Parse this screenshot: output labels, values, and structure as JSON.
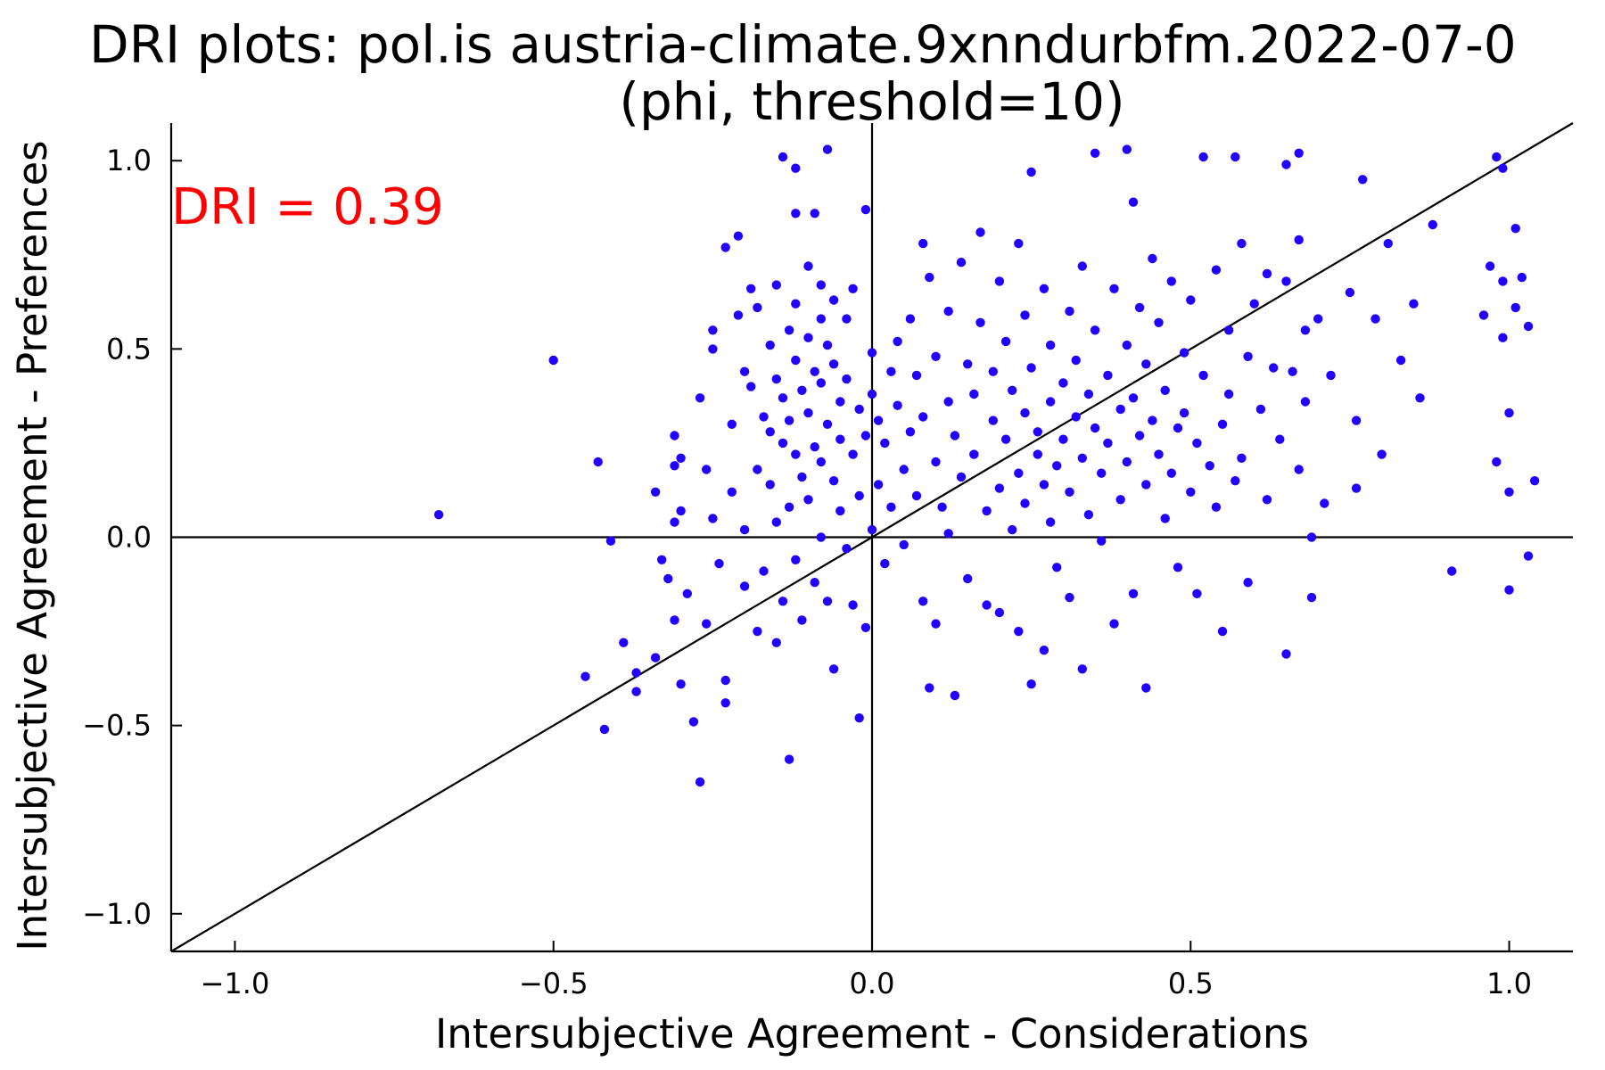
{
  "chart_data": {
    "type": "scatter",
    "title": "DRI plots: pol.is austria-climate.9xnndurbfm.2022-07-0",
    "subtitle": "(phi, threshold=10)",
    "xlabel": "Intersubjective Agreement - Considerations",
    "ylabel": "Intersubjective Agreement - Preferences",
    "xlim": [
      -1.1,
      1.1
    ],
    "ylim": [
      -1.1,
      1.1
    ],
    "xticks": [
      -1.0,
      -0.5,
      0.0,
      0.5,
      1.0
    ],
    "xtick_labels": [
      "−1.0",
      "−0.5",
      "0.0",
      "0.5",
      "1.0"
    ],
    "yticks": [
      1.0,
      0.5,
      0.0,
      -0.5,
      -1.0
    ],
    "ytick_labels": [
      "1.0",
      "0.5",
      "0.0",
      "−0.5",
      "−1.0"
    ],
    "grid": false,
    "annotation": {
      "text": "DRI = 0.39",
      "color": "#ff0000"
    },
    "reference_lines": [
      "y = x",
      "x = 0",
      "y = 0"
    ],
    "point_color": "#2200ff",
    "points": [
      [
        -0.68,
        0.06
      ],
      [
        -0.5,
        0.47
      ],
      [
        -0.43,
        0.2
      ],
      [
        -0.41,
        -0.01
      ],
      [
        -0.39,
        -0.28
      ],
      [
        -0.42,
        -0.51
      ],
      [
        -0.45,
        -0.37
      ],
      [
        -0.37,
        -0.41
      ],
      [
        -0.37,
        -0.36
      ],
      [
        -0.34,
        -0.32
      ],
      [
        -0.34,
        0.12
      ],
      [
        -0.33,
        -0.06
      ],
      [
        -0.32,
        -0.11
      ],
      [
        -0.31,
        -0.22
      ],
      [
        -0.31,
        0.04
      ],
      [
        -0.31,
        0.19
      ],
      [
        -0.31,
        0.27
      ],
      [
        -0.3,
        0.21
      ],
      [
        -0.3,
        -0.39
      ],
      [
        -0.3,
        0.07
      ],
      [
        -0.29,
        -0.15
      ],
      [
        -0.28,
        -0.49
      ],
      [
        -0.27,
        -0.65
      ],
      [
        -0.27,
        0.37
      ],
      [
        -0.26,
        0.18
      ],
      [
        -0.26,
        -0.23
      ],
      [
        -0.25,
        0.5
      ],
      [
        -0.25,
        0.55
      ],
      [
        -0.25,
        0.05
      ],
      [
        -0.24,
        -0.07
      ],
      [
        -0.23,
        -0.38
      ],
      [
        -0.23,
        -0.44
      ],
      [
        -0.23,
        0.77
      ],
      [
        -0.22,
        0.3
      ],
      [
        -0.22,
        0.12
      ],
      [
        -0.21,
        0.59
      ],
      [
        -0.21,
        0.8
      ],
      [
        -0.2,
        0.44
      ],
      [
        -0.2,
        -0.13
      ],
      [
        -0.2,
        0.02
      ],
      [
        -0.19,
        0.4
      ],
      [
        -0.19,
        0.66
      ],
      [
        -0.18,
        0.61
      ],
      [
        -0.18,
        0.18
      ],
      [
        -0.18,
        -0.25
      ],
      [
        -0.17,
        0.32
      ],
      [
        -0.17,
        -0.09
      ],
      [
        -0.16,
        0.51
      ],
      [
        -0.16,
        0.28
      ],
      [
        -0.16,
        0.14
      ],
      [
        -0.15,
        0.67
      ],
      [
        -0.15,
        0.42
      ],
      [
        -0.15,
        0.04
      ],
      [
        -0.15,
        -0.28
      ],
      [
        -0.14,
        0.37
      ],
      [
        -0.14,
        0.25
      ],
      [
        -0.14,
        -0.17
      ],
      [
        -0.14,
        1.01
      ],
      [
        -0.13,
        0.55
      ],
      [
        -0.13,
        0.31
      ],
      [
        -0.13,
        0.08
      ],
      [
        -0.13,
        -0.59
      ],
      [
        -0.12,
        0.86
      ],
      [
        -0.12,
        0.62
      ],
      [
        -0.12,
        0.47
      ],
      [
        -0.12,
        0.22
      ],
      [
        -0.12,
        -0.06
      ],
      [
        -0.12,
        0.98
      ],
      [
        -0.11,
        0.39
      ],
      [
        -0.11,
        0.16
      ],
      [
        -0.11,
        -0.22
      ],
      [
        -0.1,
        0.72
      ],
      [
        -0.1,
        0.53
      ],
      [
        -0.1,
        0.33
      ],
      [
        -0.1,
        0.1
      ],
      [
        -0.09,
        0.86
      ],
      [
        -0.09,
        0.44
      ],
      [
        -0.09,
        0.24
      ],
      [
        -0.09,
        -0.12
      ],
      [
        -0.08,
        0.67
      ],
      [
        -0.08,
        0.58
      ],
      [
        -0.08,
        0.41
      ],
      [
        -0.08,
        0.2
      ],
      [
        -0.08,
        0.0
      ],
      [
        -0.07,
        0.51
      ],
      [
        -0.07,
        0.3
      ],
      [
        -0.07,
        -0.17
      ],
      [
        -0.07,
        1.03
      ],
      [
        -0.06,
        0.63
      ],
      [
        -0.06,
        0.46
      ],
      [
        -0.06,
        0.15
      ],
      [
        -0.06,
        -0.35
      ],
      [
        -0.05,
        0.36
      ],
      [
        -0.05,
        0.26
      ],
      [
        -0.05,
        0.07
      ],
      [
        -0.04,
        0.58
      ],
      [
        -0.04,
        0.42
      ],
      [
        -0.04,
        -0.03
      ],
      [
        -0.03,
        0.66
      ],
      [
        -0.03,
        0.22
      ],
      [
        -0.03,
        -0.18
      ],
      [
        -0.02,
        0.34
      ],
      [
        -0.02,
        0.11
      ],
      [
        -0.02,
        -0.48
      ],
      [
        -0.01,
        0.87
      ],
      [
        -0.01,
        0.27
      ],
      [
        -0.01,
        -0.24
      ],
      [
        0.0,
        0.49
      ],
      [
        0.0,
        0.38
      ],
      [
        0.0,
        0.02
      ],
      [
        0.01,
        0.14
      ],
      [
        0.01,
        0.31
      ],
      [
        0.02,
        -0.07
      ],
      [
        0.02,
        0.25
      ],
      [
        0.03,
        0.44
      ],
      [
        0.03,
        0.08
      ],
      [
        0.04,
        0.52
      ],
      [
        0.04,
        0.35
      ],
      [
        0.05,
        0.18
      ],
      [
        0.05,
        -0.02
      ],
      [
        0.06,
        0.58
      ],
      [
        0.06,
        0.28
      ],
      [
        0.07,
        0.43
      ],
      [
        0.07,
        0.11
      ],
      [
        0.08,
        0.78
      ],
      [
        0.08,
        -0.17
      ],
      [
        0.08,
        0.32
      ],
      [
        0.09,
        -0.4
      ],
      [
        0.09,
        0.69
      ],
      [
        0.1,
        0.2
      ],
      [
        0.1,
        0.48
      ],
      [
        0.1,
        -0.23
      ],
      [
        0.11,
        0.08
      ],
      [
        0.12,
        0.36
      ],
      [
        0.12,
        0.6
      ],
      [
        0.12,
        0.01
      ],
      [
        0.13,
        -0.42
      ],
      [
        0.13,
        0.27
      ],
      [
        0.14,
        0.16
      ],
      [
        0.14,
        0.73
      ],
      [
        0.15,
        0.46
      ],
      [
        0.15,
        -0.11
      ],
      [
        0.16,
        0.22
      ],
      [
        0.16,
        0.38
      ],
      [
        0.17,
        0.57
      ],
      [
        0.17,
        0.81
      ],
      [
        0.18,
        0.07
      ],
      [
        0.18,
        -0.18
      ],
      [
        0.19,
        0.31
      ],
      [
        0.19,
        0.44
      ],
      [
        0.2,
        0.13
      ],
      [
        0.2,
        0.68
      ],
      [
        0.2,
        -0.2
      ],
      [
        0.21,
        0.26
      ],
      [
        0.21,
        0.52
      ],
      [
        0.22,
        0.39
      ],
      [
        0.22,
        0.02
      ],
      [
        0.23,
        0.17
      ],
      [
        0.23,
        0.78
      ],
      [
        0.23,
        -0.25
      ],
      [
        0.24,
        0.33
      ],
      [
        0.24,
        0.59
      ],
      [
        0.24,
        0.09
      ],
      [
        0.25,
        0.97
      ],
      [
        0.25,
        0.45
      ],
      [
        0.25,
        -0.39
      ],
      [
        0.26,
        0.22
      ],
      [
        0.26,
        0.28
      ],
      [
        0.27,
        0.14
      ],
      [
        0.27,
        0.66
      ],
      [
        0.27,
        -0.3
      ],
      [
        0.28,
        0.36
      ],
      [
        0.28,
        0.04
      ],
      [
        0.28,
        0.51
      ],
      [
        0.29,
        0.19
      ],
      [
        0.29,
        -0.08
      ],
      [
        0.3,
        0.41
      ],
      [
        0.3,
        0.26
      ],
      [
        0.31,
        0.6
      ],
      [
        0.31,
        0.12
      ],
      [
        0.31,
        -0.16
      ],
      [
        0.32,
        0.32
      ],
      [
        0.32,
        0.47
      ],
      [
        0.33,
        0.21
      ],
      [
        0.33,
        0.72
      ],
      [
        0.33,
        -0.35
      ],
      [
        0.34,
        0.38
      ],
      [
        0.34,
        0.06
      ],
      [
        0.35,
        1.02
      ],
      [
        0.35,
        0.29
      ],
      [
        0.35,
        0.55
      ],
      [
        0.36,
        0.17
      ],
      [
        0.36,
        -0.01
      ],
      [
        0.37,
        0.43
      ],
      [
        0.37,
        0.25
      ],
      [
        0.38,
        0.66
      ],
      [
        0.38,
        -0.23
      ],
      [
        0.39,
        0.34
      ],
      [
        0.39,
        0.1
      ],
      [
        0.4,
        0.51
      ],
      [
        0.4,
        0.2
      ],
      [
        0.4,
        1.03
      ],
      [
        0.41,
        0.89
      ],
      [
        0.41,
        0.37
      ],
      [
        0.41,
        -0.15
      ],
      [
        0.42,
        0.27
      ],
      [
        0.42,
        0.61
      ],
      [
        0.43,
        0.46
      ],
      [
        0.43,
        0.14
      ],
      [
        0.43,
        -0.4
      ],
      [
        0.44,
        0.74
      ],
      [
        0.44,
        0.31
      ],
      [
        0.45,
        0.22
      ],
      [
        0.45,
        0.57
      ],
      [
        0.46,
        0.39
      ],
      [
        0.46,
        0.05
      ],
      [
        0.47,
        0.68
      ],
      [
        0.47,
        0.17
      ],
      [
        0.48,
        0.29
      ],
      [
        0.48,
        -0.08
      ],
      [
        0.49,
        0.49
      ],
      [
        0.49,
        0.33
      ],
      [
        0.5,
        0.12
      ],
      [
        0.5,
        0.63
      ],
      [
        0.51,
        0.25
      ],
      [
        0.51,
        -0.15
      ],
      [
        0.52,
        1.01
      ],
      [
        0.52,
        0.43
      ],
      [
        0.53,
        0.19
      ],
      [
        0.54,
        0.71
      ],
      [
        0.54,
        0.08
      ],
      [
        0.55,
        0.3
      ],
      [
        0.55,
        -0.25
      ],
      [
        0.56,
        0.55
      ],
      [
        0.56,
        0.38
      ],
      [
        0.57,
        0.15
      ],
      [
        0.57,
        1.01
      ],
      [
        0.58,
        0.78
      ],
      [
        0.58,
        0.21
      ],
      [
        0.59,
        0.48
      ],
      [
        0.59,
        -0.12
      ],
      [
        0.6,
        0.62
      ],
      [
        0.61,
        0.34
      ],
      [
        0.62,
        0.7
      ],
      [
        0.62,
        0.1
      ],
      [
        0.63,
        0.45
      ],
      [
        0.64,
        0.26
      ],
      [
        0.65,
        0.68
      ],
      [
        0.65,
        0.99
      ],
      [
        0.65,
        -0.31
      ],
      [
        0.66,
        0.44
      ],
      [
        0.67,
        0.79
      ],
      [
        0.67,
        1.02
      ],
      [
        0.67,
        0.18
      ],
      [
        0.68,
        0.55
      ],
      [
        0.68,
        0.36
      ],
      [
        0.69,
        -0.16
      ],
      [
        0.69,
        0.0
      ],
      [
        0.7,
        0.58
      ],
      [
        0.71,
        0.09
      ],
      [
        0.72,
        0.43
      ],
      [
        0.75,
        0.65
      ],
      [
        0.76,
        0.13
      ],
      [
        0.76,
        0.31
      ],
      [
        0.77,
        0.95
      ],
      [
        0.79,
        0.58
      ],
      [
        0.8,
        0.22
      ],
      [
        0.81,
        0.78
      ],
      [
        0.83,
        0.47
      ],
      [
        0.85,
        0.62
      ],
      [
        0.86,
        0.37
      ],
      [
        0.88,
        0.83
      ],
      [
        0.91,
        -0.09
      ],
      [
        0.96,
        0.59
      ],
      [
        0.97,
        0.72
      ],
      [
        0.98,
        1.01
      ],
      [
        0.98,
        0.2
      ],
      [
        0.99,
        0.68
      ],
      [
        0.99,
        0.98
      ],
      [
        0.99,
        0.53
      ],
      [
        1.0,
        0.33
      ],
      [
        1.0,
        -0.14
      ],
      [
        1.0,
        0.12
      ],
      [
        1.01,
        0.82
      ],
      [
        1.01,
        0.61
      ],
      [
        1.02,
        0.69
      ],
      [
        1.03,
        0.56
      ],
      [
        1.03,
        -0.05
      ],
      [
        1.04,
        0.15
      ]
    ]
  }
}
